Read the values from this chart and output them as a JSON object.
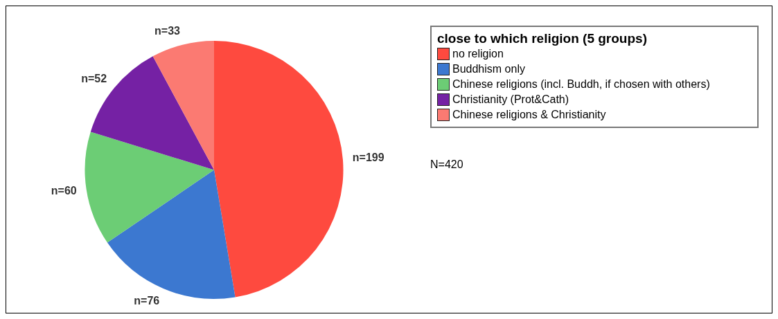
{
  "chart_data": {
    "type": "pie",
    "legend_title": "close to which religion (5 groups)",
    "categories": [
      "no religion",
      "Buddhism only",
      "Chinese religions (incl. Buddh, if chosen with others)",
      "Christianity (Prot&Cath)",
      "Chinese religions & Christianity"
    ],
    "values": [
      199,
      76,
      60,
      52,
      33
    ],
    "colors": [
      "#fe4a3f",
      "#3c78d0",
      "#6ccd75",
      "#7521a4",
      "#fb7a72"
    ],
    "value_labels": [
      "n=199",
      "n=76",
      "n=60",
      "n=52",
      "n=33"
    ],
    "legend": "top right",
    "annotations": [
      "N=420"
    ]
  }
}
